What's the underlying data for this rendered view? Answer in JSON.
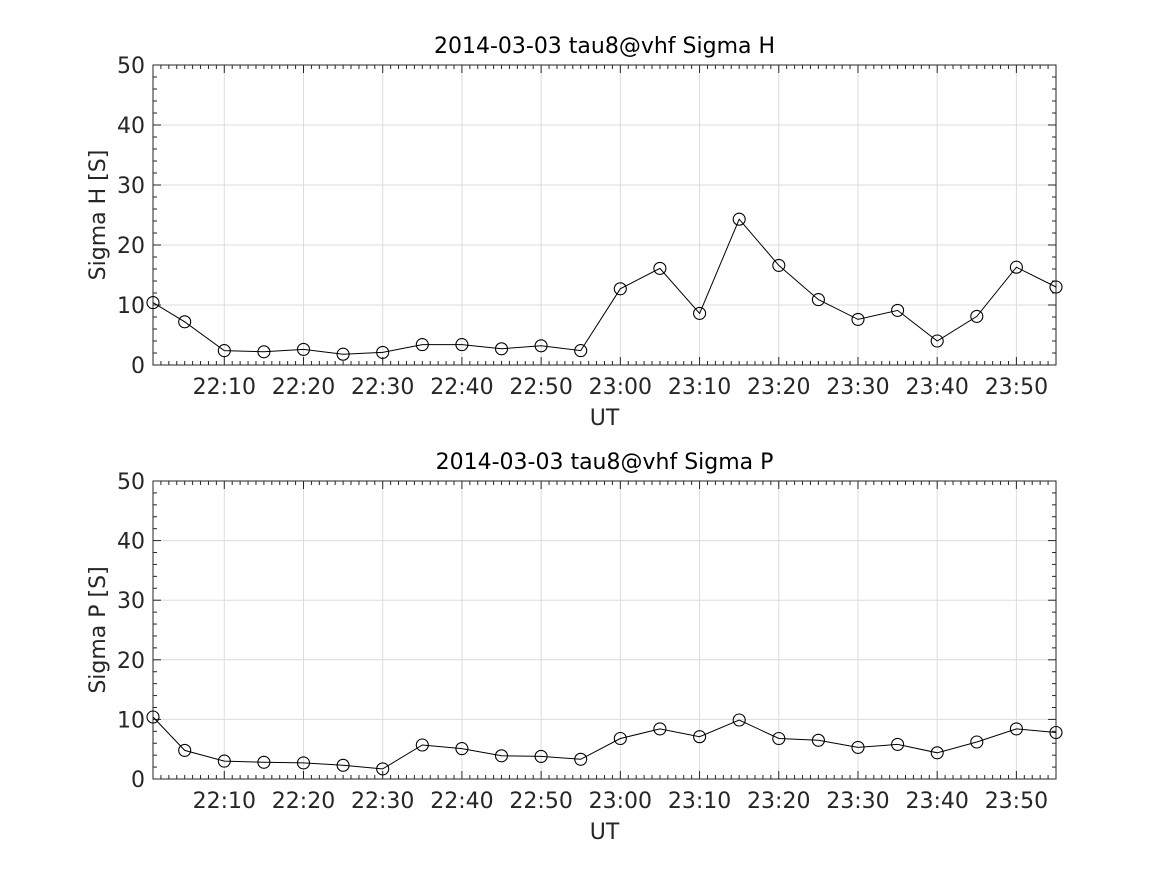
{
  "chart_data": [
    {
      "type": "line",
      "title": "2014-03-03  tau8@vhf Sigma H",
      "xlabel": "UT",
      "ylabel": "Sigma H [S]",
      "ylim": [
        0,
        50
      ],
      "yticks": [
        0,
        10,
        20,
        30,
        40,
        50
      ],
      "xlim": [
        "22:01",
        "23:55"
      ],
      "xticks": [
        "22:10",
        "22:20",
        "22:30",
        "22:40",
        "22:50",
        "23:00",
        "23:10",
        "23:20",
        "23:30",
        "23:40",
        "23:50"
      ],
      "grid": true,
      "marker": "circle",
      "series": [
        {
          "x": [
            "22:01",
            "22:05",
            "22:10",
            "22:15",
            "22:20",
            "22:25",
            "22:30",
            "22:35",
            "22:40",
            "22:45",
            "22:50",
            "22:55",
            "23:00",
            "23:05",
            "23:10",
            "23:15",
            "23:20",
            "23:25",
            "23:30",
            "23:35",
            "23:40",
            "23:45",
            "23:50",
            "23:55"
          ],
          "values": [
            10.4,
            7.2,
            2.4,
            2.2,
            2.6,
            1.8,
            2.1,
            3.4,
            3.4,
            2.7,
            3.2,
            2.4,
            12.7,
            16.1,
            8.6,
            24.3,
            16.6,
            10.9,
            7.6,
            9.1,
            4.0,
            8.1,
            16.3,
            13.0
          ]
        }
      ]
    },
    {
      "type": "line",
      "title": "2014-03-03  tau8@vhf Sigma P",
      "xlabel": "UT",
      "ylabel": "Sigma P [S]",
      "ylim": [
        0,
        50
      ],
      "yticks": [
        0,
        10,
        20,
        30,
        40,
        50
      ],
      "xlim": [
        "22:01",
        "23:55"
      ],
      "xticks": [
        "22:10",
        "22:20",
        "22:30",
        "22:40",
        "22:50",
        "23:00",
        "23:10",
        "23:20",
        "23:30",
        "23:40",
        "23:50"
      ],
      "grid": true,
      "marker": "circle",
      "series": [
        {
          "x": [
            "22:01",
            "22:05",
            "22:10",
            "22:15",
            "22:20",
            "22:25",
            "22:30",
            "22:35",
            "22:40",
            "22:45",
            "22:50",
            "22:55",
            "23:00",
            "23:05",
            "23:10",
            "23:15",
            "23:20",
            "23:25",
            "23:30",
            "23:35",
            "23:40",
            "23:45",
            "23:50",
            "23:55"
          ],
          "values": [
            10.4,
            4.8,
            3.0,
            2.8,
            2.7,
            2.3,
            1.7,
            5.7,
            5.1,
            3.9,
            3.8,
            3.3,
            6.8,
            8.4,
            7.1,
            9.9,
            6.8,
            6.5,
            5.3,
            5.8,
            4.4,
            6.2,
            8.4,
            7.8
          ]
        }
      ]
    }
  ]
}
